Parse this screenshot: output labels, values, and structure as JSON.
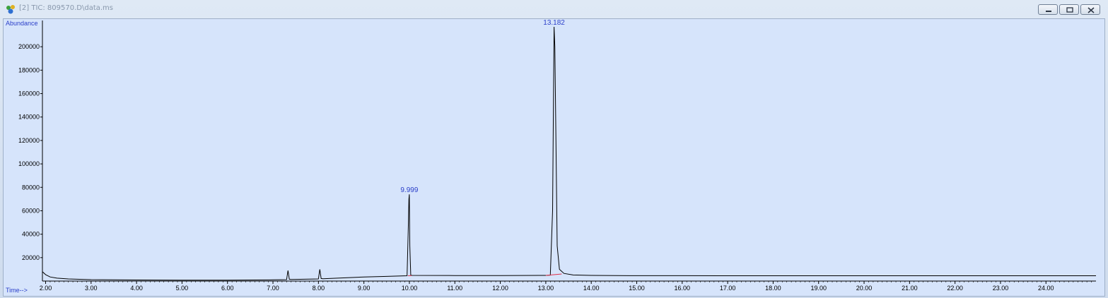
{
  "window": {
    "title": "[2] TIC: 809570.D\\data.ms",
    "app_icon": "chemstation-icon",
    "controls": [
      "minimize-icon",
      "restore-icon",
      "close-icon"
    ]
  },
  "colors": {
    "plot_background": "#d6e4fb",
    "trace": "#000000",
    "peak_label": "#2b3fc9",
    "baseline_marker": "#e0304a"
  },
  "chart_data": {
    "type": "line",
    "title": "",
    "ylabel": "Abundance",
    "xlabel": "Time-->",
    "xlim": [
      1.93,
      25.1
    ],
    "ylim": [
      0,
      220000
    ],
    "y_ticks": [
      20000,
      40000,
      60000,
      80000,
      100000,
      120000,
      140000,
      160000,
      180000,
      200000
    ],
    "x_ticks": [
      "2.00",
      "3.00",
      "4.00",
      "5.00",
      "6.00",
      "7.00",
      "8.00",
      "9.00",
      "10.00",
      "11.00",
      "12.00",
      "13.00",
      "14.00",
      "15.00",
      "16.00",
      "17.00",
      "18.00",
      "19.00",
      "20.00",
      "21.00",
      "22.00",
      "23.00",
      "24.00"
    ],
    "grid": false,
    "series": [
      {
        "x": [
          1.93,
          2.0,
          2.1,
          2.25,
          2.5,
          3.0,
          4.0,
          5.0,
          6.0,
          7.0,
          7.3,
          7.33,
          7.36,
          7.4,
          8.0,
          8.03,
          8.06,
          8.1,
          9.0,
          9.5,
          9.95,
          9.98,
          9.99,
          9.999,
          10.01,
          10.03,
          10.06,
          11.0,
          12.0,
          13.0,
          13.1,
          13.15,
          13.182,
          13.2,
          13.25,
          13.3,
          13.4,
          13.6,
          14.0,
          15.0,
          16.0,
          17.0,
          18.0,
          19.0,
          20.0,
          21.0,
          22.0,
          23.0,
          24.0,
          25.1
        ],
        "y": [
          8000,
          5500,
          3500,
          2500,
          1800,
          1200,
          900,
          800,
          800,
          1000,
          1200,
          9000,
          1500,
          1300,
          1800,
          10000,
          2200,
          2000,
          3500,
          4000,
          4500,
          52000,
          70000,
          74000,
          30000,
          5000,
          4800,
          4700,
          4700,
          4800,
          5000,
          60000,
          217000,
          200000,
          30000,
          10000,
          6500,
          5200,
          4800,
          4600,
          4600,
          4500,
          4500,
          4500,
          4500,
          4500,
          4500,
          4500,
          4500,
          4500
        ]
      }
    ],
    "annotations": [
      {
        "text": "9.999",
        "x": 9.999,
        "y": 74000
      },
      {
        "text": "13.182",
        "x": 13.182,
        "y": 217000
      }
    ]
  }
}
